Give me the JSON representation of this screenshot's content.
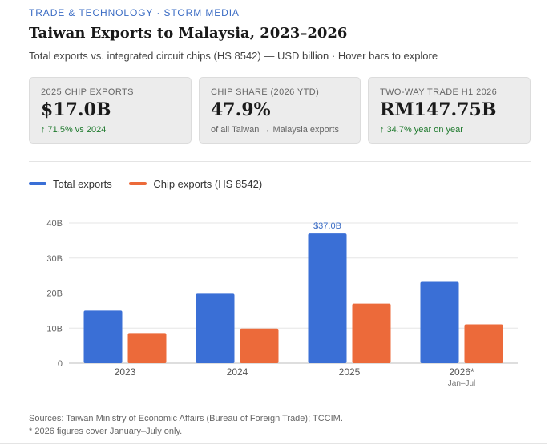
{
  "header": {
    "kicker": "TRADE & TECHNOLOGY · STORM MEDIA",
    "title": "Taiwan Exports to Malaysia, 2023–2026",
    "subtitle": "Total exports vs. integrated circuit chips (HS 8542) — USD billion  ·  Hover bars to explore"
  },
  "kpis": [
    {
      "label": "2025 CHIP EXPORTS",
      "value": "$17.0B",
      "note": "↑ 71.5% vs 2024"
    },
    {
      "label": "CHIP SHARE (2026 YTD)",
      "value": "47.9%",
      "note": "of all Taiwan → Malaysia exports"
    },
    {
      "label": "TWO-WAY TRADE H1 2026",
      "value": "RM147.75B",
      "note": "↑ 34.7% year on year"
    }
  ],
  "colors": {
    "total": "#3a6fd6",
    "chip": "#ec6a3a",
    "up": "#1f7a2e",
    "kicker": "#3b6cc4"
  },
  "chart_data": {
    "type": "bar",
    "categories": [
      "2023",
      "2024",
      "2025",
      "2026*"
    ],
    "category_sublabels": [
      "",
      "",
      "",
      "Jan–Jul"
    ],
    "series": [
      {
        "name": "Total exports",
        "values": [
          15.0,
          19.8,
          37.0,
          23.2
        ]
      },
      {
        "name": "Chip exports (HS 8542)",
        "values": [
          8.6,
          9.9,
          17.0,
          11.1
        ]
      }
    ],
    "y_ticks": [
      "0",
      "10B",
      "20B",
      "30B",
      "40B"
    ],
    "ylim": [
      0,
      40
    ],
    "grid": true,
    "legend_position": "top-left",
    "annotation": {
      "category": "2025",
      "series": "Total exports",
      "text": "$37.0B"
    }
  },
  "footer": {
    "sources": "Sources: Taiwan Ministry of Economic Affairs (Bureau of Foreign Trade); TCCIM.",
    "note": "* 2026 figures cover January–July only."
  }
}
